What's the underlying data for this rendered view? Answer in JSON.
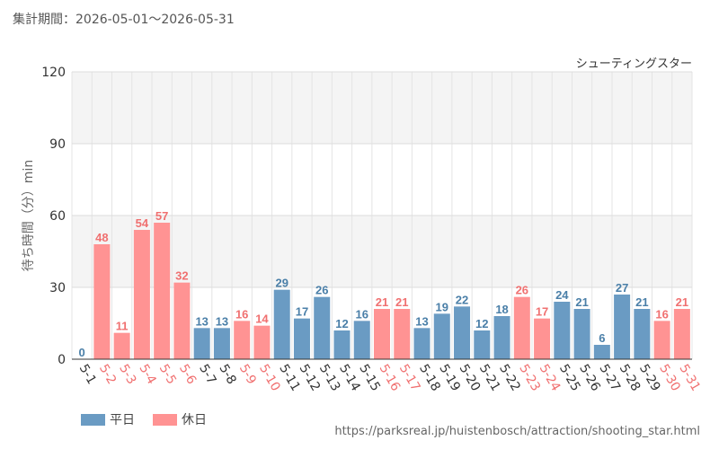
{
  "header": {
    "period_label": "集計期間：2026-05-01～2026-05-31"
  },
  "legend": {
    "weekday_label": "平日",
    "holiday_label": "休日"
  },
  "source_url": "https://parksreal.jp/huistenbosch/attraction/shooting_star.html",
  "colors": {
    "weekday": "#6a9bc3",
    "holiday": "#ff9393",
    "weekday_text": "#4a7fa8",
    "holiday_text": "#f07070"
  },
  "chart_data": {
    "type": "bar",
    "title": "シューティングスター",
    "ylabel": "待ち時間（分）min",
    "ylim": [
      0,
      120
    ],
    "yticks": [
      0,
      30,
      60,
      90,
      120
    ],
    "grid": true,
    "legend_position": "bottom-left",
    "categories": [
      "5-1",
      "5-2",
      "5-3",
      "5-4",
      "5-5",
      "5-6",
      "5-7",
      "5-8",
      "5-9",
      "5-10",
      "5-11",
      "5-12",
      "5-13",
      "5-14",
      "5-15",
      "5-16",
      "5-17",
      "5-18",
      "5-19",
      "5-20",
      "5-21",
      "5-22",
      "5-23",
      "5-24",
      "5-25",
      "5-26",
      "5-27",
      "5-28",
      "5-29",
      "5-30",
      "5-31"
    ],
    "values": [
      0,
      48,
      11,
      54,
      57,
      32,
      13,
      13,
      16,
      14,
      29,
      17,
      26,
      12,
      16,
      21,
      21,
      13,
      19,
      22,
      12,
      18,
      26,
      17,
      24,
      21,
      6,
      27,
      21,
      16,
      21
    ],
    "day_type": [
      "平日",
      "休日",
      "休日",
      "休日",
      "休日",
      "休日",
      "平日",
      "平日",
      "休日",
      "休日",
      "平日",
      "平日",
      "平日",
      "平日",
      "平日",
      "休日",
      "休日",
      "平日",
      "平日",
      "平日",
      "平日",
      "平日",
      "休日",
      "休日",
      "平日",
      "平日",
      "平日",
      "平日",
      "平日",
      "休日",
      "休日"
    ]
  }
}
